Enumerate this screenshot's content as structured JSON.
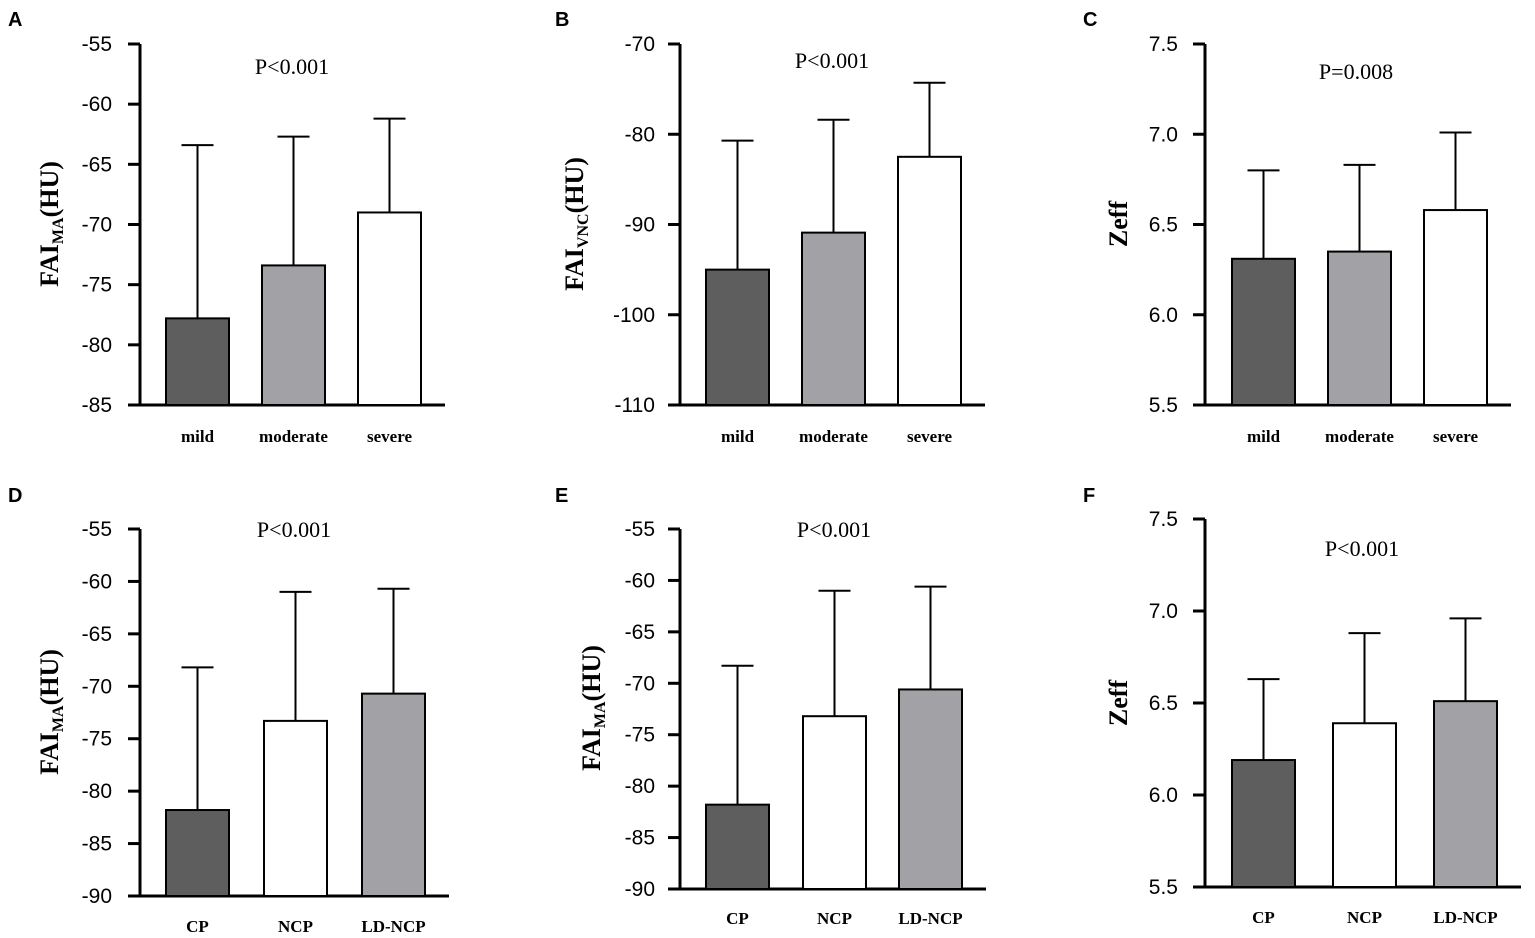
{
  "chart_data": [
    {
      "type": "bar",
      "panel": "A",
      "title": "P<0.001",
      "ylabel_main": "FAI",
      "ylabel_sub": "MA",
      "ylabel_unit": "(HU)",
      "categories": [
        "mild",
        "moderate",
        "severe"
      ],
      "values": [
        -77.8,
        -73.4,
        -69.0
      ],
      "errors": [
        14.4,
        10.7,
        7.8
      ],
      "colors": [
        "#5e5e5e",
        "#a2a1a6",
        "#ffffff"
      ],
      "ylim": [
        -85,
        -55
      ],
      "yticks": [
        -55,
        -60,
        -65,
        -70,
        -75,
        -80,
        -85
      ],
      "tick_labels": [
        "-55",
        "-60",
        "-65",
        "-70",
        "-75",
        "-80",
        "-85"
      ]
    },
    {
      "type": "bar",
      "panel": "B",
      "title": "P<0.001",
      "ylabel_main": "FAI",
      "ylabel_sub": "VNC",
      "ylabel_unit": "(HU)",
      "categories": [
        "mild",
        "moderate",
        "severe"
      ],
      "values": [
        -95.0,
        -90.9,
        -82.5
      ],
      "errors": [
        14.3,
        12.5,
        8.2
      ],
      "colors": [
        "#5e5e5e",
        "#a2a1a6",
        "#ffffff"
      ],
      "ylim": [
        -110,
        -70
      ],
      "yticks": [
        -70,
        -80,
        -90,
        -100,
        -110
      ],
      "tick_labels": [
        "-70",
        "-80",
        "-90",
        "-100",
        "-110"
      ]
    },
    {
      "type": "bar",
      "panel": "C",
      "title": "P=0.008",
      "ylabel_main": "Zeff",
      "ylabel_sub": "",
      "ylabel_unit": "",
      "categories": [
        "mild",
        "moderate",
        "severe"
      ],
      "values": [
        6.31,
        6.35,
        6.58
      ],
      "errors": [
        0.49,
        0.48,
        0.43
      ],
      "colors": [
        "#5e5e5e",
        "#a2a1a6",
        "#ffffff"
      ],
      "ylim": [
        5.5,
        7.5
      ],
      "yticks": [
        7.5,
        7.0,
        6.5,
        6.0,
        5.5
      ],
      "tick_labels": [
        "7.5",
        "7.0",
        "6.5",
        "6.0",
        "5.5"
      ]
    },
    {
      "type": "bar",
      "panel": "D",
      "title": "P<0.001",
      "ylabel_main": "FAI",
      "ylabel_sub": "MA",
      "ylabel_unit": "(HU)",
      "categories": [
        "CP",
        "NCP",
        "LD-NCP"
      ],
      "values": [
        -81.8,
        -73.3,
        -70.7
      ],
      "errors": [
        13.6,
        12.3,
        10.0
      ],
      "colors": [
        "#5e5e5e",
        "#ffffff",
        "#a2a1a6"
      ],
      "ylim": [
        -90,
        -55
      ],
      "yticks": [
        -55,
        -60,
        -65,
        -70,
        -75,
        -80,
        -85,
        -90
      ],
      "tick_labels": [
        "-55",
        "-60",
        "-65",
        "-70",
        "-75",
        "-80",
        "-85",
        "-90"
      ]
    },
    {
      "type": "bar",
      "panel": "E",
      "title": "P<0.001",
      "ylabel_main": "FAI",
      "ylabel_sub": "MA",
      "ylabel_unit": "(HU)",
      "categories": [
        "CP",
        "NCP",
        "LD-NCP"
      ],
      "values": [
        -81.8,
        -73.2,
        -70.6
      ],
      "errors": [
        13.5,
        12.2,
        10.0
      ],
      "colors": [
        "#5e5e5e",
        "#ffffff",
        "#a2a1a6"
      ],
      "ylim": [
        -90,
        -55
      ],
      "yticks": [
        -55,
        -60,
        -65,
        -70,
        -75,
        -80,
        -85,
        -90
      ],
      "tick_labels": [
        "-55",
        "-60",
        "-65",
        "-70",
        "-75",
        "-80",
        "-85",
        "-90"
      ]
    },
    {
      "type": "bar",
      "panel": "F",
      "title": "P<0.001",
      "ylabel_main": "Zeff",
      "ylabel_sub": "",
      "ylabel_unit": "",
      "categories": [
        "CP",
        "NCP",
        "LD-NCP"
      ],
      "values": [
        6.19,
        6.39,
        6.51
      ],
      "errors": [
        0.44,
        0.49,
        0.45
      ],
      "colors": [
        "#5e5e5e",
        "#ffffff",
        "#a2a1a6"
      ],
      "ylim": [
        5.5,
        7.5
      ],
      "yticks": [
        7.5,
        7.0,
        6.5,
        6.0,
        5.5
      ],
      "tick_labels": [
        "7.5",
        "7.0",
        "6.5",
        "6.0",
        "5.5"
      ]
    }
  ]
}
